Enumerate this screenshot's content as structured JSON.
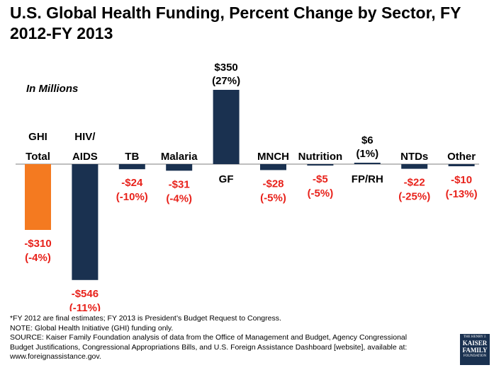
{
  "title": "U.S. Global Health Funding, Percent Change by Sector, FY 2012-FY 2013",
  "unit_note": "In Millions",
  "colors": {
    "ghi": "#f47a20",
    "sector": "#1a3150",
    "negative_label": "#e8221b",
    "positive_label": "#000000"
  },
  "chart_data": {
    "type": "bar",
    "categories": [
      {
        "line1": "GHI",
        "line2": "Total"
      },
      {
        "line1": "HIV/",
        "line2": "AIDS"
      },
      {
        "line1": "TB",
        "line2": ""
      },
      {
        "line1": "Malaria",
        "line2": ""
      },
      {
        "line1": "GF",
        "line2": ""
      },
      {
        "line1": "MNCH",
        "line2": ""
      },
      {
        "line1": "Nutrition",
        "line2": ""
      },
      {
        "line1": "FP/RH",
        "line2": ""
      },
      {
        "line1": "NTDs",
        "line2": ""
      },
      {
        "line1": "Other",
        "line2": ""
      }
    ],
    "values": [
      -310,
      -546,
      -24,
      -31,
      350,
      -28,
      -5,
      6,
      -22,
      -10
    ],
    "labels": [
      {
        "amount": "-$310",
        "pct": "(-4%)"
      },
      {
        "amount": "-$546",
        "pct": "(-11%)"
      },
      {
        "amount": "-$24",
        "pct": "(-10%)"
      },
      {
        "amount": "-$31",
        "pct": "(-4%)"
      },
      {
        "amount": "$350",
        "pct": "(27%)"
      },
      {
        "amount": "-$28",
        "pct": "(-5%)"
      },
      {
        "amount": "-$5",
        "pct": "(-5%)"
      },
      {
        "amount": "$6",
        "pct": "(1%)"
      },
      {
        "amount": "-$22",
        "pct": "(-25%)"
      },
      {
        "amount": "-$10",
        "pct": "(-13%)"
      }
    ],
    "ylim": [
      -546,
      350
    ],
    "grid": false,
    "legend": "none"
  },
  "notes": [
    "*FY 2012 are final estimates; FY 2013 is President’s Budget Request to Congress.",
    "NOTE: Global Health Initiative (GHI) funding only.",
    "SOURCE: Kaiser Family Foundation analysis of data from the Office of Management and Budget, Agency Congressional",
    "Budget Justifications, Congressional Appropriations Bills, and U.S. Foreign Assistance Dashboard [website], available at:",
    "www.foreignassistance.gov."
  ],
  "logo": {
    "line1": "THE HENRY J.",
    "line2a": "KAISER",
    "line2b": "FAMILY",
    "line3": "FOUNDATION"
  }
}
